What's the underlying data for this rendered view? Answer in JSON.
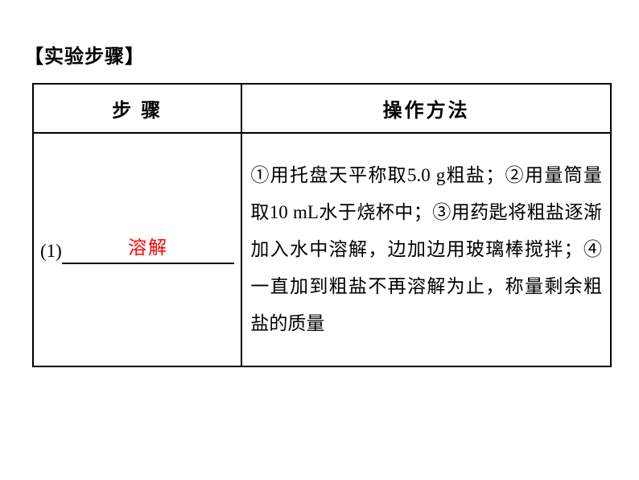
{
  "layout": {
    "background_color": "#ffffff",
    "text_color": "#000000",
    "answer_color": "#ff0000",
    "border_color": "#000000",
    "font_family": "SimSun",
    "body_fontsize": 23,
    "header_fontsize": 24,
    "title_fontsize": 24,
    "line_height": 2.0,
    "border_width": 2
  },
  "content": {
    "section_title": "【实验步骤】",
    "table": {
      "col_step_width": 260,
      "col_method_width": 460,
      "header": {
        "step": "步 骤",
        "method": "操作方法"
      },
      "row1": {
        "step_number": "(1)",
        "step_answer": "溶解",
        "method_text": "①用托盘天平称取5.0 g粗盐；②用量筒量取10 mL水于烧杯中；③用药匙将粗盐逐渐加入水中溶解，边加边用玻璃棒搅拌；④一直加到粗盐不再溶解为止，称量剩余粗盐的质量"
      }
    }
  }
}
